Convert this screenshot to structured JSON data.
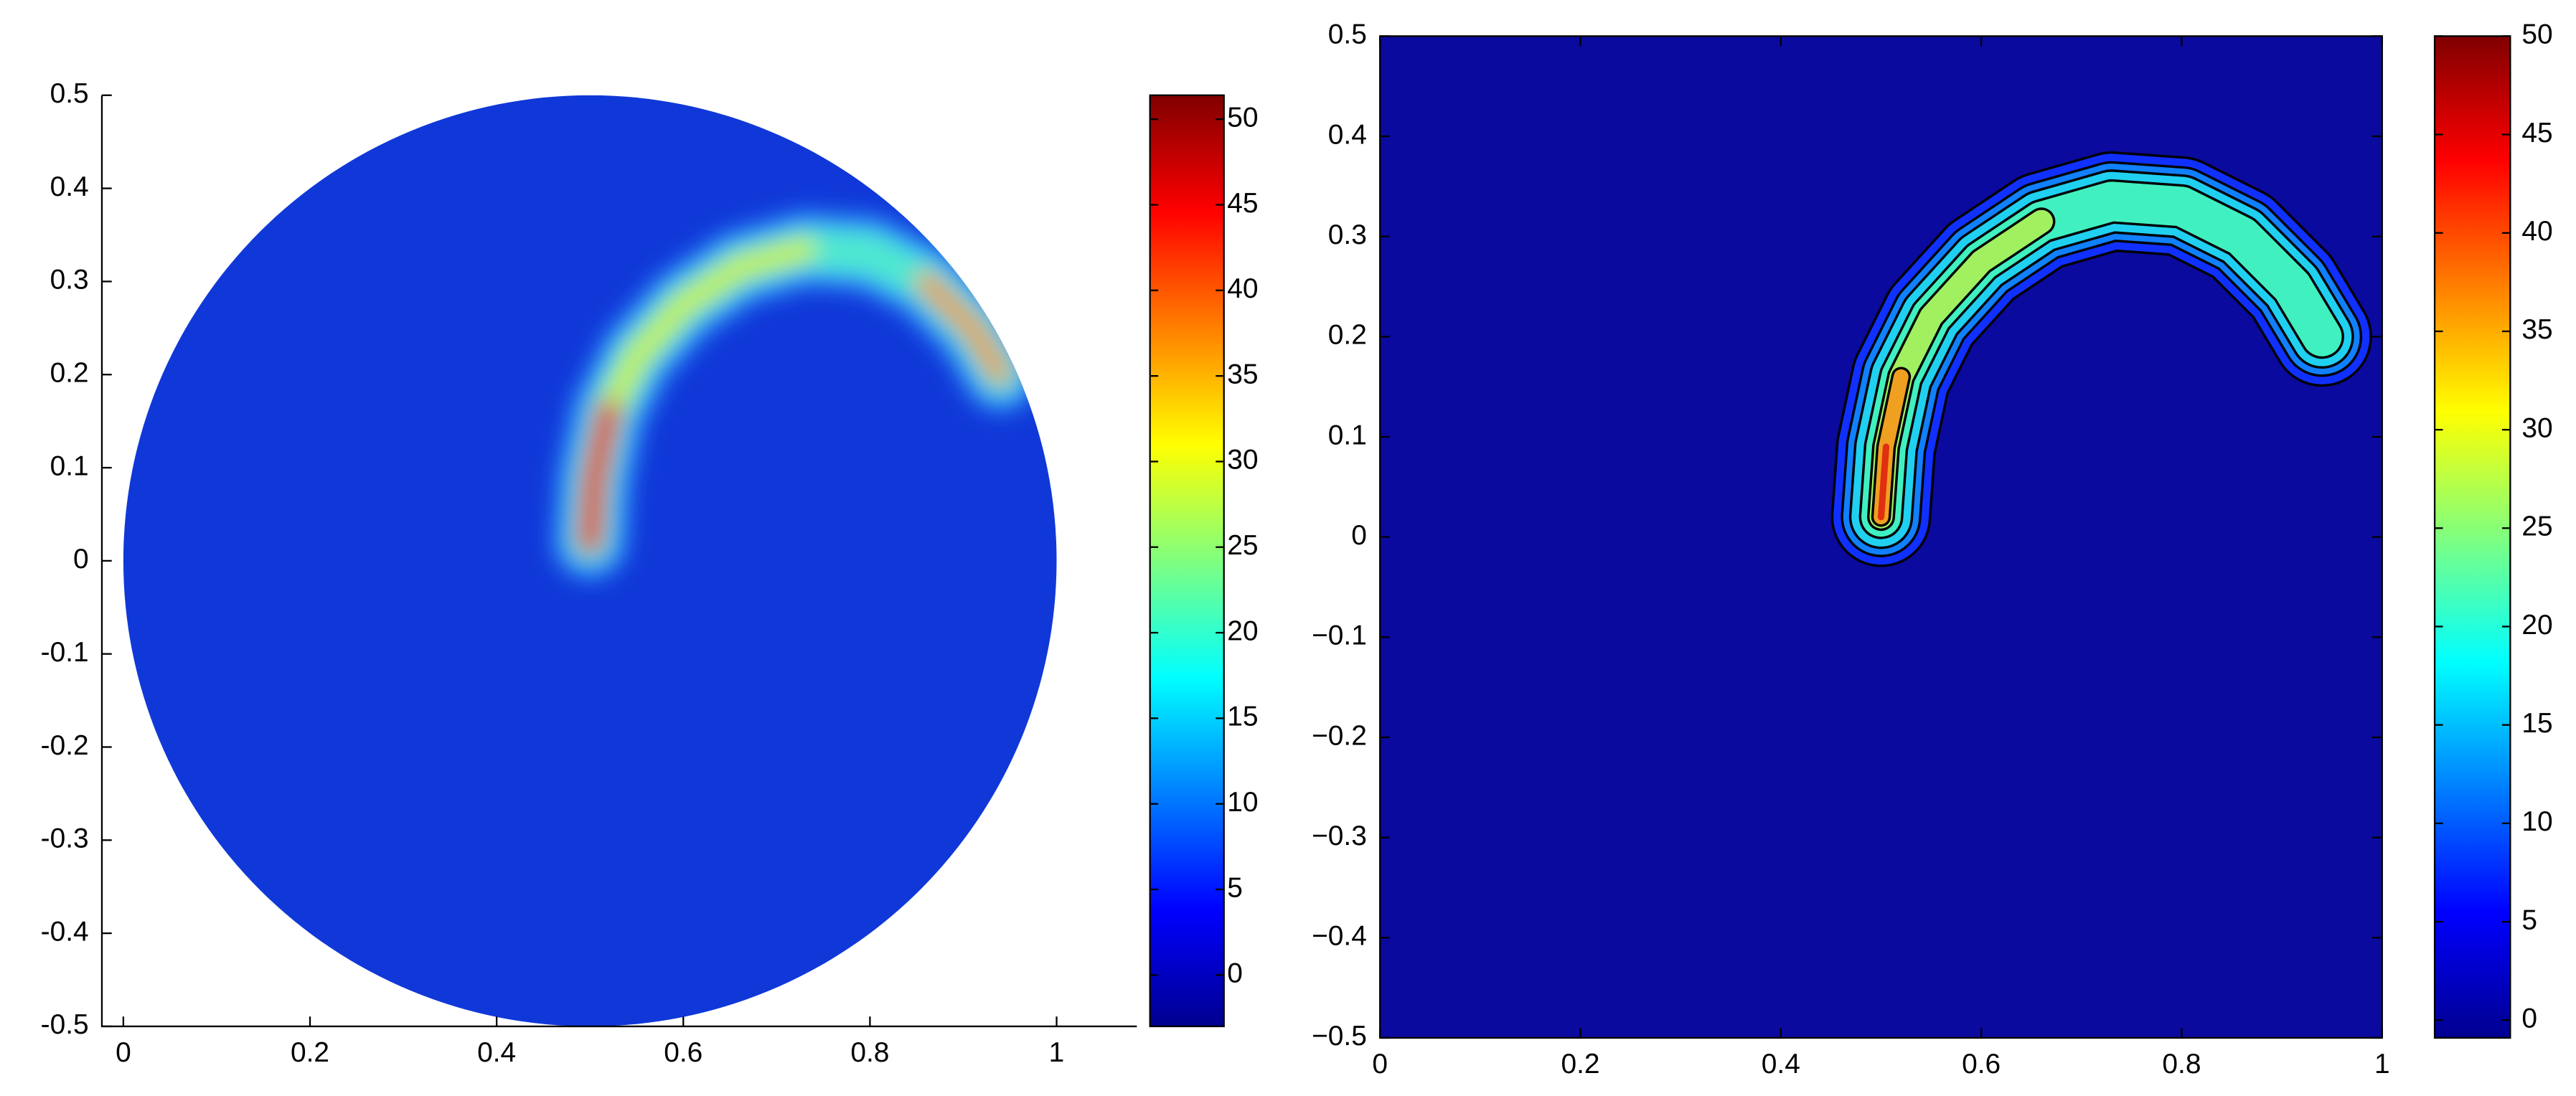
{
  "chart_data": [
    {
      "type": "heatmap",
      "colormap": "jet",
      "background": "#1038d8",
      "xlim": [
        -0.023,
        1.086
      ],
      "ylim": [
        -0.5,
        0.5
      ],
      "xticks": [
        0,
        0.2,
        0.4,
        0.6,
        0.8,
        1
      ],
      "yticks": [
        -0.5,
        -0.4,
        -0.3,
        -0.2,
        -0.1,
        0,
        0.1,
        0.2,
        0.3,
        0.4,
        0.5
      ],
      "colorbar": {
        "clim": [
          -3,
          51.4
        ],
        "ticks": [
          0,
          5,
          10,
          15,
          20,
          25,
          30,
          35,
          40,
          45,
          50
        ]
      }
    },
    {
      "type": "contour",
      "colormap": "jet",
      "background": "#0a0a9e",
      "xlim": [
        0,
        1
      ],
      "ylim": [
        -0.5,
        0.5
      ],
      "xticks": [
        0,
        0.2,
        0.4,
        0.6,
        0.8,
        1
      ],
      "yticks": [
        {
          "value": -0.5,
          "label": "−0.5"
        },
        {
          "value": -0.4,
          "label": "−0.4"
        },
        {
          "value": -0.3,
          "label": "−0.3"
        },
        {
          "value": -0.2,
          "label": "−0.2"
        },
        {
          "value": -0.1,
          "label": "−0.1"
        },
        0,
        0.1,
        0.2,
        0.3,
        0.4,
        0.5
      ],
      "colorbar": {
        "clim": [
          -0.9,
          50
        ],
        "ticks": [
          0,
          5,
          10,
          15,
          20,
          25,
          30,
          35,
          40,
          45,
          50
        ]
      }
    }
  ]
}
